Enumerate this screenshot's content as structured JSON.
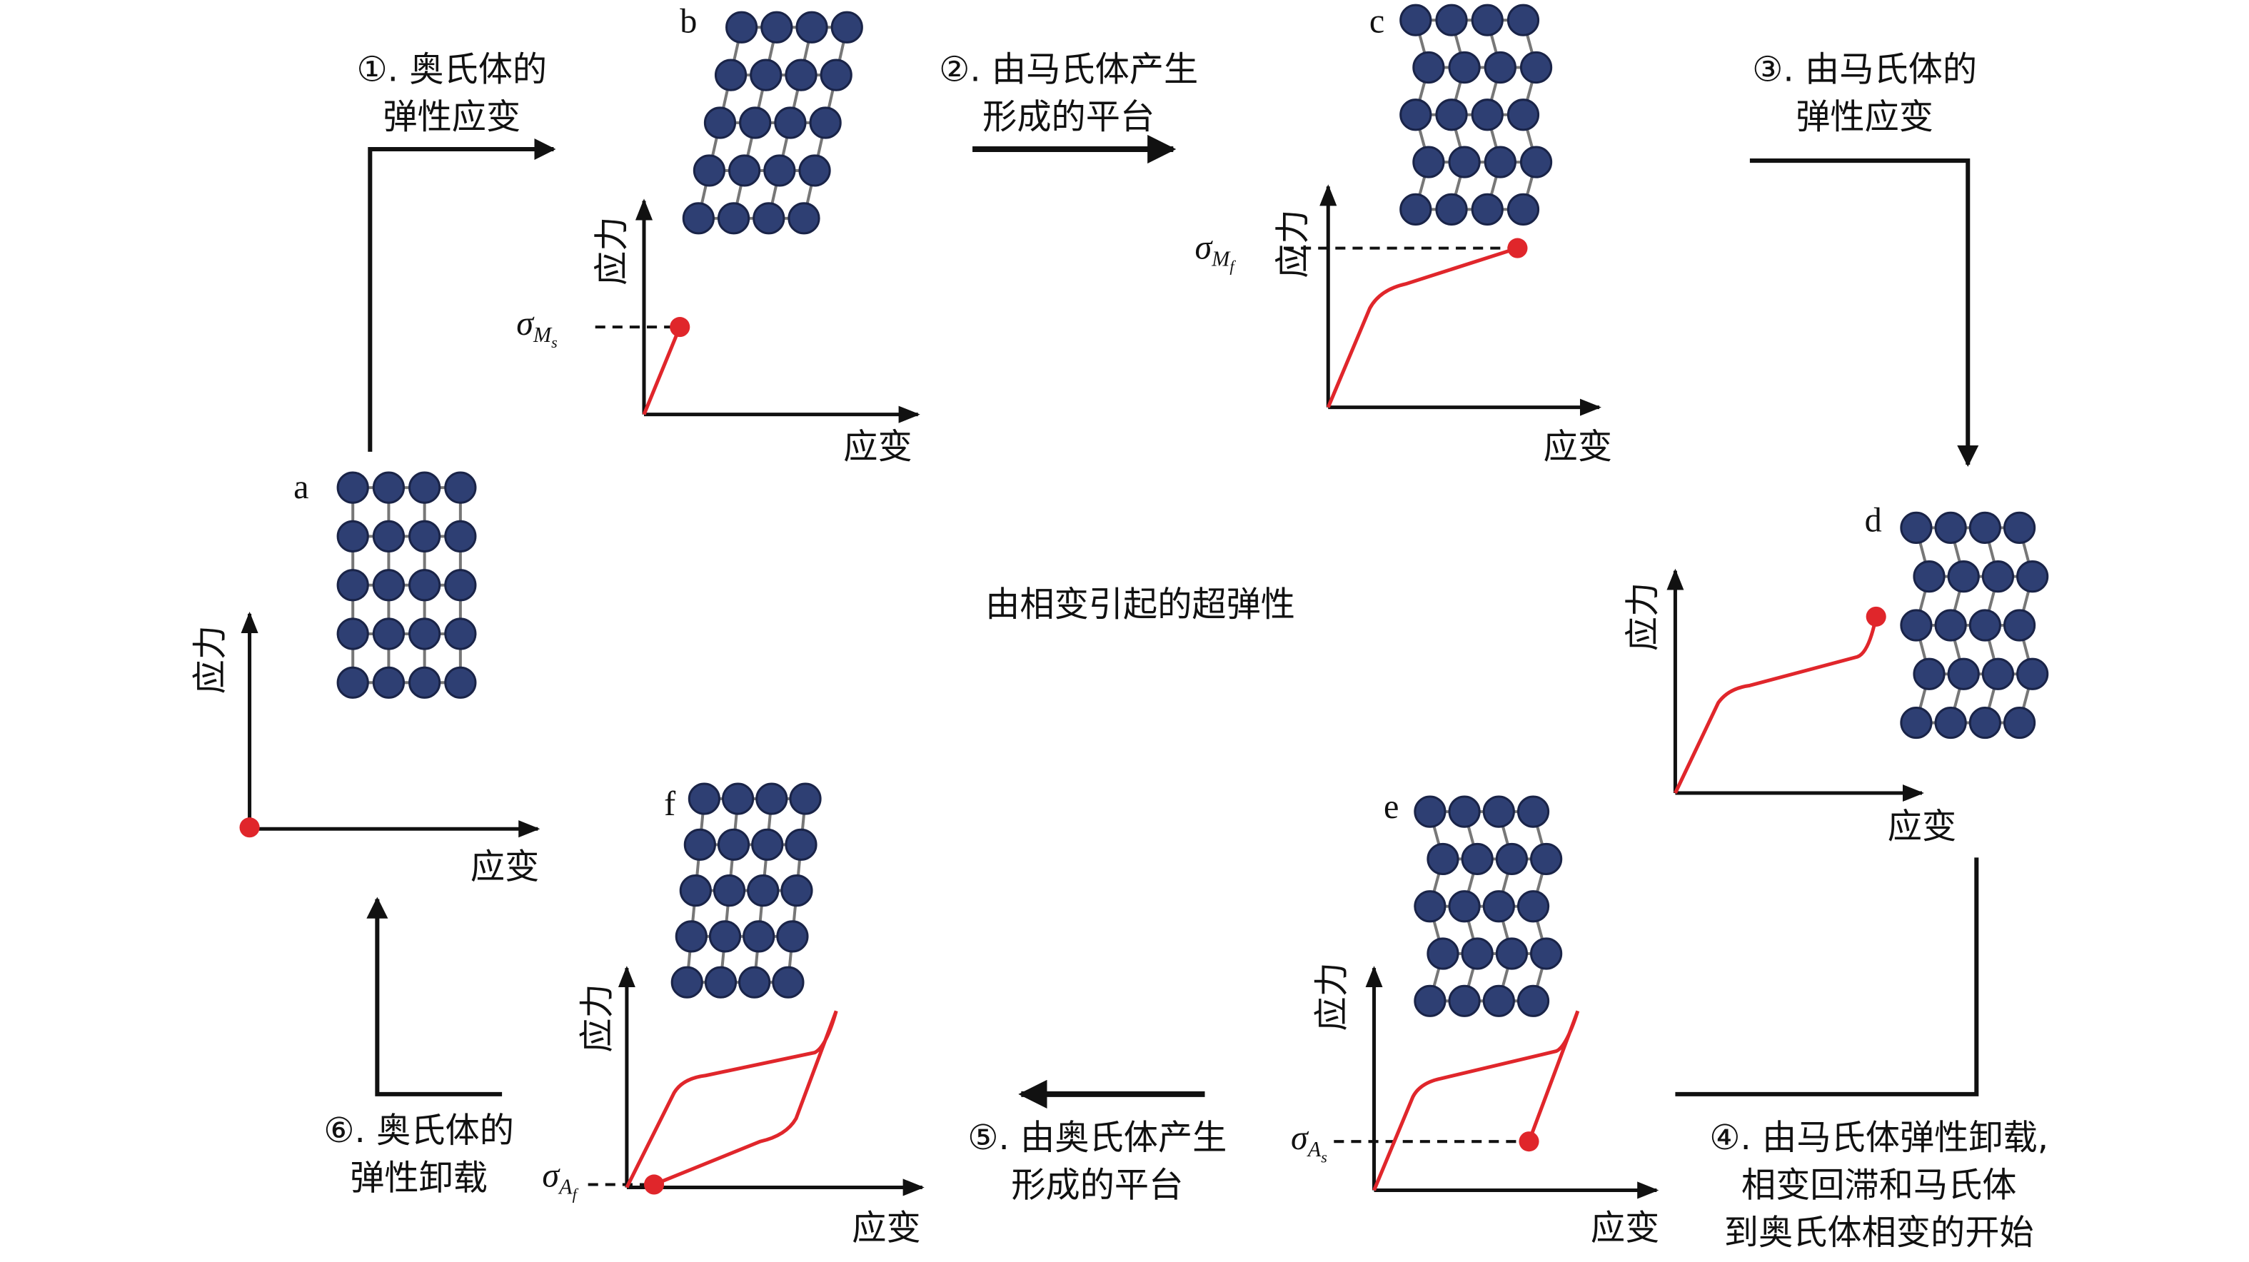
{
  "title": "由相变引起的超弹性",
  "panels": [
    {
      "label": "a",
      "y_axis": "应力",
      "x_axis": "应变"
    },
    {
      "label": "b",
      "y_axis": "应力",
      "x_axis": "应变",
      "sigma": {
        "symbol": "σ",
        "sub": "M",
        "subsub": "s"
      }
    },
    {
      "label": "c",
      "y_axis": "应力",
      "x_axis": "应变",
      "sigma": {
        "symbol": "σ",
        "sub": "M",
        "subsub": "f"
      }
    },
    {
      "label": "d",
      "y_axis": "应力",
      "x_axis": "应变"
    },
    {
      "label": "e",
      "y_axis": "应力",
      "x_axis": "应变",
      "sigma": {
        "symbol": "σ",
        "sub": "A",
        "subsub": "s"
      }
    },
    {
      "label": "f",
      "y_axis": "应力",
      "x_axis": "应变",
      "sigma": {
        "symbol": "σ",
        "sub": "A",
        "subsub": "f"
      }
    }
  ],
  "steps": [
    {
      "lines": [
        "①. 奥氏体的",
        "弹性应变"
      ]
    },
    {
      "lines": [
        "②. 由马氏体产生",
        "形成的平台"
      ]
    },
    {
      "lines": [
        "③. 由马氏体的",
        "弹性应变"
      ]
    },
    {
      "lines": [
        "④. 由马氏体弹性卸载,",
        "相变回滞和马氏体",
        "到奥氏体相变的开始"
      ]
    },
    {
      "lines": [
        "⑤. 由奥氏体产生",
        "形成的平台"
      ]
    },
    {
      "lines": [
        "⑥. 奥氏体的",
        "弹性卸载"
      ]
    }
  ]
}
